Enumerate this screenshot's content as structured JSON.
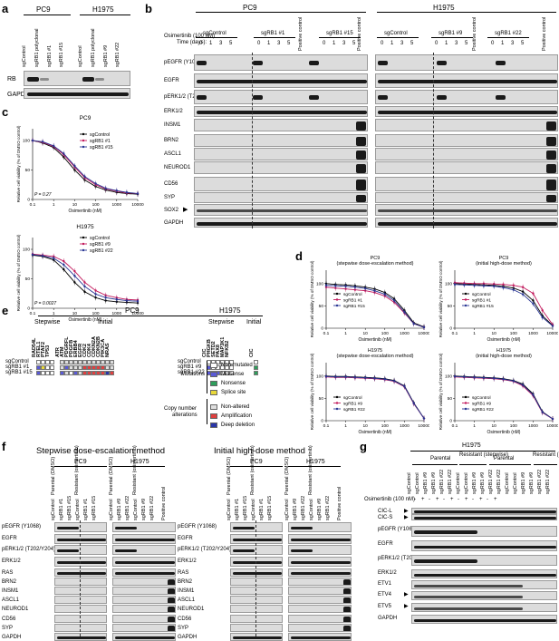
{
  "panels": {
    "a": {
      "letter": "a",
      "groups": [
        "PC9",
        "H1975"
      ],
      "lanes": [
        "sgControl",
        "sgRB1 polyclonal",
        "sgRB1 #1",
        "sgRB1 #15",
        "sgControl",
        "sgRB1 polyclonal",
        "sgRB1 #9",
        "sgRB1 #22"
      ],
      "rows": [
        "RB",
        "GAPDH"
      ]
    },
    "b": {
      "letter": "b",
      "groups": [
        "PC9",
        "H1975"
      ],
      "treatment": "Osimertinib (100 nM)",
      "time_label": "Time (days):",
      "times": [
        "0",
        "1",
        "3",
        "5"
      ],
      "clones_pc9": [
        "sgControl",
        "sgRB1 #1",
        "sgRB1 #15"
      ],
      "clones_h1975": [
        "sgControl",
        "sgRB1 #9",
        "sgRB1 #22"
      ],
      "positive_control": "Positive control",
      "rows": [
        "pEGFR (Y1068)",
        "EGFR",
        "pERK1/2 (T202/Y204)",
        "ERK1/2",
        "INSM1",
        "BRN2",
        "ASCL1",
        "NEUROD1",
        "CD56",
        "SYP",
        "SOX2",
        "GAPDH"
      ]
    },
    "c": {
      "letter": "c"
    },
    "d": {
      "letter": "d"
    },
    "e": {
      "letter": "e",
      "pc9_title": "PC9",
      "h1975_title": "H1975",
      "stepwise": "Stepwise",
      "initial": "Initial",
      "rows_pc9": [
        "sgControl",
        "sgRB1 #1",
        "sgRB1 #15"
      ],
      "rows_h1975": [
        "sgControl",
        "sgRB1 #9",
        "sgRB1 #22"
      ],
      "genes_pc9_stepwise": [
        "RAD54L",
        "RTEL1",
        "PTAF2",
        "TP53"
      ],
      "genes_pc9_initial": [
        "ATR",
        "ATM",
        "PDGRFL",
        "PDGFB",
        "ERBB4",
        "EGFR",
        "CDK2",
        "CDK4",
        "CDKN2A",
        "CDKN2B",
        "PIK3CA",
        "NRAS"
      ],
      "genes_h1975_stepwise": [
        "CIC",
        "PHGKB",
        "SETD2",
        "PAX8",
        "MAP3K1",
        "NFKB2"
      ],
      "genes_h1975_initial": [
        "CIC"
      ],
      "legend_group_mut": "Mutations",
      "legend_group_cn": "Copy number alterations",
      "legend": [
        {
          "label": "Non-mutated",
          "color": "#ffffff"
        },
        {
          "label": "Missense",
          "color": "#5a5ad6"
        },
        {
          "label": "Nonsense",
          "color": "#2e9e5b"
        },
        {
          "label": "Splice site",
          "color": "#e8d83a"
        },
        {
          "label": "Non-altered",
          "color": "#dedede"
        },
        {
          "label": "Amplification",
          "color": "#e04040"
        },
        {
          "label": "Deep deletion",
          "color": "#2a36a8"
        }
      ]
    },
    "f": {
      "letter": "f",
      "title_left": "Stepwise dose-escalation method",
      "title_right": "Initial high-dose method",
      "groups": [
        "PC9",
        "H1975"
      ],
      "lanes": [
        "Parental (DMSO)",
        "Resistant (osimertinib)"
      ],
      "clones_pc9": [
        "sgControl",
        "sgRB1 #1",
        "sgRB1 #15"
      ],
      "clones_h1975": [
        "sgControl",
        "sgRB1 #9",
        "sgRB1 #22"
      ],
      "positive_control": "Positive control",
      "rows": [
        "pEGFR (Y1068)",
        "EGFR",
        "pERK1/2 (T202/Y204)",
        "ERK1/2",
        "RAS",
        "BRN2",
        "INSM1",
        "ASCL1",
        "NEUROD1",
        "CD56",
        "SYP",
        "GAPDH"
      ]
    },
    "g": {
      "letter": "g",
      "group": "H1975",
      "lanes_top": [
        "Parental",
        "Resistant (stepwise)",
        "Parental",
        "Resistant (initial)"
      ],
      "clones": [
        "sgControl",
        "sgRB1 #9",
        "sgRB1 #22"
      ],
      "treatment": "Osimertinib (100 nM)",
      "signs": [
        "-",
        "+",
        "-",
        "+",
        "-",
        "+"
      ],
      "rows": [
        "CIC-L",
        "CIC-S",
        "pEGFR (Y1068)",
        "EGFR",
        "pERK1/2 (T202/Y204)",
        "ERK1/2",
        "ETV1",
        "ETV4",
        "ETV5",
        "GAPDH"
      ]
    }
  },
  "chart_data": [
    {
      "type": "line",
      "title": "PC9",
      "xlabel": "Osimertinib (nM)",
      "ylabel": "Relative cell viability (% of DMSO control)",
      "x": [
        0.1,
        0.3,
        1,
        3,
        10,
        30,
        100,
        300,
        1000,
        3000,
        10000
      ],
      "xticks": [
        "0.1",
        "1",
        "10",
        "100",
        "1000",
        "10000"
      ],
      "yticks": [
        "0",
        "50",
        "100"
      ],
      "ylim": [
        0,
        120
      ],
      "xscale": "log",
      "annotation": "P = 0.27",
      "series": [
        {
          "name": "sgControl",
          "color": "#000000",
          "values": [
            100,
            96,
            88,
            72,
            50,
            33,
            22,
            16,
            12,
            10,
            9
          ]
        },
        {
          "name": "sgRB1 #1",
          "color": "#c2185b",
          "values": [
            100,
            97,
            90,
            76,
            55,
            37,
            25,
            18,
            14,
            11,
            10
          ]
        },
        {
          "name": "sgRB1 #15",
          "color": "#283593",
          "values": [
            100,
            98,
            91,
            78,
            57,
            39,
            27,
            19,
            15,
            12,
            10
          ]
        }
      ]
    },
    {
      "type": "line",
      "title": "H1975",
      "xlabel": "Osimertinib (nM)",
      "ylabel": "Relative cell viability (% of DMSO control)",
      "x": [
        0.1,
        0.3,
        1,
        3,
        10,
        30,
        100,
        300,
        1000,
        3000,
        10000
      ],
      "xticks": [
        "0.1",
        "1",
        "10",
        "100",
        "1000",
        "10000"
      ],
      "yticks": [
        "0",
        "50",
        "100"
      ],
      "ylim": [
        0,
        120
      ],
      "xscale": "log",
      "annotation": "P = 0.0027",
      "series": [
        {
          "name": "sgControl",
          "color": "#000000",
          "values": [
            90,
            88,
            82,
            66,
            44,
            28,
            18,
            13,
            11,
            10,
            9
          ]
        },
        {
          "name": "sgRB1 #9",
          "color": "#c2185b",
          "values": [
            92,
            90,
            88,
            80,
            63,
            44,
            30,
            22,
            18,
            15,
            14
          ]
        },
        {
          "name": "sgRB1 #22",
          "color": "#283593",
          "values": [
            91,
            89,
            85,
            74,
            55,
            37,
            24,
            18,
            15,
            13,
            12
          ]
        }
      ]
    },
    {
      "type": "line",
      "title": "PC9 (stepwise dose-escalation method)",
      "xlabel": "Osimertinib (nM)",
      "ylabel": "Relative cell viability (% of DMSO control)",
      "x": [
        0.1,
        0.3,
        1,
        3,
        10,
        30,
        100,
        300,
        1000,
        3000,
        10000
      ],
      "xticks": [
        "0.1",
        "1",
        "10",
        "100",
        "1000",
        "10000"
      ],
      "yticks": [
        "0",
        "50",
        "100"
      ],
      "ylim": [
        0,
        130
      ],
      "xscale": "log",
      "series": [
        {
          "name": "sgControl",
          "color": "#000000",
          "values": [
            100,
            98,
            97,
            95,
            92,
            88,
            80,
            66,
            40,
            12,
            3
          ]
        },
        {
          "name": "sgRB1 #1",
          "color": "#c2185b",
          "values": [
            92,
            90,
            88,
            86,
            84,
            80,
            72,
            58,
            34,
            10,
            2
          ]
        },
        {
          "name": "sgRB1 #15",
          "color": "#283593",
          "values": [
            96,
            95,
            94,
            92,
            89,
            84,
            76,
            62,
            36,
            10,
            2
          ]
        }
      ]
    },
    {
      "type": "line",
      "title": "PC9 (initial high-dose method)",
      "xlabel": "Osimertinib (nM)",
      "ylabel": "Relative cell viability (% of DMSO control)",
      "x": [
        0.1,
        0.3,
        1,
        3,
        10,
        30,
        100,
        300,
        1000,
        3000,
        10000
      ],
      "xticks": [
        "0.1",
        "1",
        "10",
        "100",
        "1000",
        "10000"
      ],
      "yticks": [
        "0",
        "50",
        "100"
      ],
      "ylim": [
        0,
        130
      ],
      "xscale": "log",
      "series": [
        {
          "name": "sgControl",
          "color": "#000000",
          "values": [
            100,
            99,
            98,
            97,
            96,
            94,
            90,
            82,
            62,
            28,
            6
          ]
        },
        {
          "name": "sgRB1 #1",
          "color": "#c2185b",
          "values": [
            102,
            101,
            100,
            100,
            99,
            98,
            96,
            92,
            78,
            40,
            8
          ]
        },
        {
          "name": "sgRB1 #15",
          "color": "#283593",
          "values": [
            98,
            97,
            96,
            95,
            94,
            91,
            86,
            76,
            55,
            24,
            5
          ]
        }
      ]
    },
    {
      "type": "line",
      "title": "H1975 (stepwise dose-escalation method)",
      "xlabel": "Osimertinib (nM)",
      "ylabel": "Relative cell viability (% of DMSO control)",
      "x": [
        0.1,
        0.3,
        1,
        3,
        10,
        30,
        100,
        300,
        1000,
        3000,
        10000
      ],
      "xticks": [
        "0.1",
        "1",
        "10",
        "100",
        "1000",
        "10000"
      ],
      "yticks": [
        "0",
        "50",
        "100"
      ],
      "ylim": [
        0,
        130
      ],
      "xscale": "log",
      "series": [
        {
          "name": "sgControl",
          "color": "#000000",
          "values": [
            100,
            99,
            99,
            98,
            97,
            96,
            94,
            90,
            78,
            40,
            5
          ]
        },
        {
          "name": "sgRB1 #9",
          "color": "#c2185b",
          "values": [
            98,
            97,
            97,
            96,
            95,
            94,
            92,
            88,
            76,
            38,
            5
          ]
        },
        {
          "name": "sgRB1 #22",
          "color": "#283593",
          "values": [
            99,
            98,
            98,
            97,
            96,
            95,
            93,
            89,
            77,
            39,
            5
          ]
        }
      ]
    },
    {
      "type": "line",
      "title": "H1975 (initial high-dose method)",
      "xlabel": "Osimertinib (nM)",
      "ylabel": "Relative cell viability (% of DMSO control)",
      "x": [
        0.1,
        0.3,
        1,
        3,
        10,
        30,
        100,
        300,
        1000,
        3000,
        10000
      ],
      "xticks": [
        "0.1",
        "1",
        "10",
        "100",
        "1000",
        "10000"
      ],
      "yticks": [
        "0",
        "50",
        "100"
      ],
      "ylim": [
        0,
        130
      ],
      "xscale": "log",
      "series": [
        {
          "name": "sgControl",
          "color": "#000000",
          "values": [
            100,
            99,
            98,
            97,
            96,
            94,
            90,
            82,
            60,
            20,
            4
          ]
        },
        {
          "name": "sgRB1 #9",
          "color": "#c2185b",
          "values": [
            98,
            97,
            96,
            95,
            94,
            92,
            88,
            78,
            56,
            18,
            4
          ]
        },
        {
          "name": "sgRB1 #22",
          "color": "#283593",
          "values": [
            99,
            98,
            97,
            96,
            95,
            93,
            89,
            80,
            58,
            19,
            4
          ]
        }
      ]
    }
  ]
}
